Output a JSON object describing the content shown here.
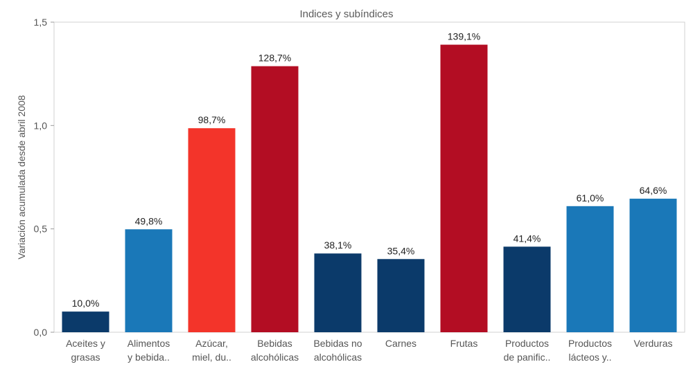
{
  "chart_data": {
    "type": "bar",
    "title": "Indices y subíndices",
    "ylabel": "Variación acumulada desde abril 2008",
    "xlabel": "",
    "ylim": [
      0,
      1.5
    ],
    "yticks": [
      {
        "value": 0,
        "label": "0,0"
      },
      {
        "value": 0.5,
        "label": "0,5"
      },
      {
        "value": 1.0,
        "label": "1,0"
      },
      {
        "value": 1.5,
        "label": "1,5"
      }
    ],
    "grid": false,
    "categories": [
      [
        "Aceites y",
        "grasas"
      ],
      [
        "Alimentos",
        "y bebida.."
      ],
      [
        "Azúcar,",
        "miel, du.."
      ],
      [
        "Bebidas",
        "alcohólicas"
      ],
      [
        "Bebidas no",
        "alcohólicas"
      ],
      [
        "Carnes"
      ],
      [
        "Frutas"
      ],
      [
        "Productos",
        "de panific.."
      ],
      [
        "Productos",
        "lácteos y.."
      ],
      [
        "Verduras"
      ]
    ],
    "values": [
      0.1,
      0.498,
      0.987,
      1.287,
      0.381,
      0.354,
      1.391,
      0.414,
      0.61,
      0.646
    ],
    "data_labels": [
      "10,0%",
      "49,8%",
      "98,7%",
      "128,7%",
      "38,1%",
      "35,4%",
      "139,1%",
      "41,4%",
      "61,0%",
      "64,6%"
    ],
    "colors": [
      "#0b3a6a",
      "#1a78b8",
      "#f3342a",
      "#b30d23",
      "#0b3a6a",
      "#0b3a6a",
      "#b30d23",
      "#0b3a6a",
      "#1a78b8",
      "#1a78b8"
    ]
  }
}
